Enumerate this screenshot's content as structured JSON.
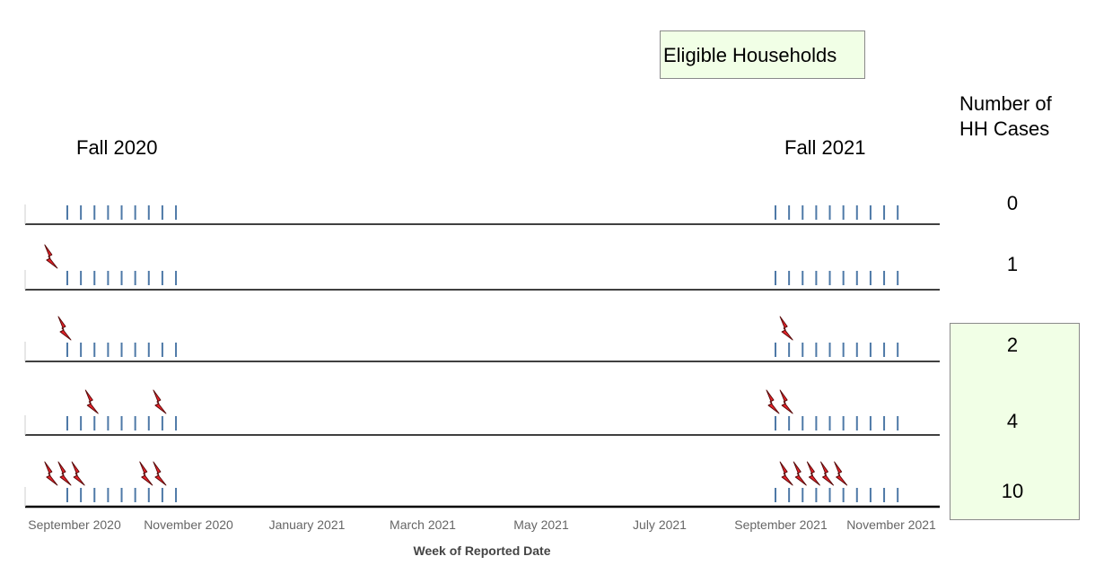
{
  "legend": {
    "eligible_label": "Eligible Households",
    "count_header_line1": "Number of",
    "count_header_line2": "HH Cases"
  },
  "seasons": [
    "Fall 2020",
    "Fall 2021"
  ],
  "chart_data": {
    "type": "scatter",
    "title": "",
    "xlabel": "Week of Reported Date",
    "ylabel": "",
    "x_ticks": [
      "September 2020",
      "November 2020",
      "January 2021",
      "March 2021",
      "May 2021",
      "July 2021",
      "September 2021",
      "November 2021"
    ],
    "xlim": [
      "2020-09-01",
      "2021-11-30"
    ],
    "weeks_fall_2020": [
      "2020-09-01",
      "2020-09-08",
      "2020-09-15",
      "2020-09-22",
      "2020-09-29",
      "2020-10-06",
      "2020-10-13",
      "2020-10-20",
      "2020-10-27"
    ],
    "weeks_fall_2021": [
      "2021-09-01",
      "2021-09-08",
      "2021-09-15",
      "2021-09-22",
      "2021-09-29",
      "2021-10-06",
      "2021-10-13",
      "2021-10-20",
      "2021-10-27",
      "2021-11-03"
    ],
    "households": [
      {
        "cases": 0,
        "eligible": false,
        "case_dates": []
      },
      {
        "cases": 1,
        "eligible": false,
        "case_dates": [
          "2020-08-25"
        ]
      },
      {
        "cases": 2,
        "eligible": true,
        "case_dates": [
          "2020-09-01",
          "2021-09-08"
        ]
      },
      {
        "cases": 4,
        "eligible": true,
        "case_dates": [
          "2020-09-15",
          "2020-10-20",
          "2021-09-01",
          "2021-09-08"
        ]
      },
      {
        "cases": 10,
        "eligible": true,
        "case_dates": [
          "2020-08-25",
          "2020-09-01",
          "2020-09-08",
          "2020-10-13",
          "2020-10-20",
          "2021-09-08",
          "2021-09-15",
          "2021-09-22",
          "2021-09-29",
          "2021-10-06"
        ]
      }
    ],
    "colors": {
      "week_tick": "#4e79a7",
      "case_marker": "#e8232a",
      "baseline": "#000000",
      "eligible_fill": "#f1ffe6"
    }
  }
}
